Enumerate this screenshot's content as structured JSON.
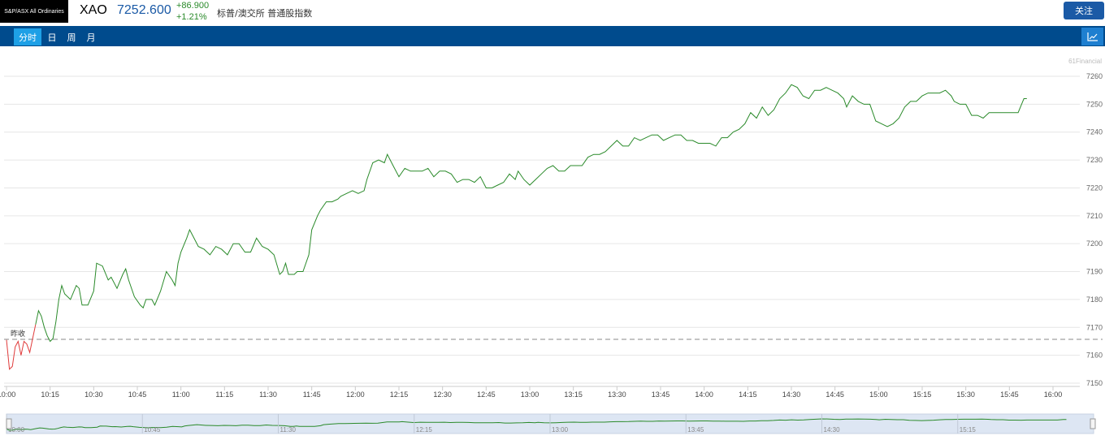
{
  "header": {
    "logo_text": "S&P/ASX All Ordinaries",
    "symbol": "XAO",
    "price": "7252.600",
    "change": "+86.900",
    "change_pct": "+1.21%",
    "exchange": "标普/澳交所 普通股指数",
    "follow_label": "关注"
  },
  "tabs": [
    {
      "label": "分时",
      "active": true
    },
    {
      "label": "日",
      "active": false
    },
    {
      "label": "周",
      "active": false
    },
    {
      "label": "月",
      "active": false
    }
  ],
  "chart_icon": "line-chart-icon",
  "colors": {
    "brand": "#004b8d",
    "tab_active": "#1ea0e6",
    "up": "#2a8a2a",
    "down": "#e03b3b",
    "price": "#1b5aa6"
  },
  "watermark": "61Financial",
  "prev_close_label": "昨收",
  "chart_data": {
    "type": "line",
    "prev_close": 7165.7,
    "ylim": [
      7150,
      7260
    ],
    "y_ticks": [
      7150,
      7160,
      7170,
      7180,
      7190,
      7200,
      7210,
      7220,
      7230,
      7240,
      7250,
      7260
    ],
    "x_ticks": [
      "10:00",
      "10:15",
      "10:30",
      "10:45",
      "11:00",
      "11:15",
      "11:30",
      "11:45",
      "12:00",
      "12:15",
      "12:30",
      "12:45",
      "13:00",
      "13:15",
      "13:30",
      "13:45",
      "14:00",
      "14:15",
      "14:30",
      "14:45",
      "15:00",
      "15:15",
      "15:30",
      "15:45",
      "16:00"
    ],
    "xlim_minutes": [
      0,
      370
    ],
    "series": [
      {
        "color": "#2a8a2a",
        "points": [
          [
            0,
            7165.5
          ],
          [
            1,
            7155
          ],
          [
            2,
            7156
          ],
          [
            3,
            7163
          ],
          [
            4,
            7165
          ],
          [
            5,
            7160
          ],
          [
            6,
            7165
          ],
          [
            7,
            7164
          ],
          [
            8,
            7161
          ],
          [
            9,
            7166
          ],
          [
            10,
            7171
          ],
          [
            11,
            7176
          ],
          [
            12,
            7174
          ],
          [
            13,
            7170
          ],
          [
            14,
            7167
          ],
          [
            15,
            7165
          ],
          [
            16,
            7166
          ],
          [
            17,
            7172
          ],
          [
            18,
            7180
          ],
          [
            19,
            7185
          ],
          [
            20,
            7182
          ],
          [
            22,
            7180
          ],
          [
            24,
            7185
          ],
          [
            25,
            7184
          ],
          [
            26,
            7178
          ],
          [
            28,
            7178
          ],
          [
            30,
            7183
          ],
          [
            31,
            7193
          ],
          [
            33,
            7192
          ],
          [
            35,
            7187
          ],
          [
            36,
            7188
          ],
          [
            38,
            7184
          ],
          [
            40,
            7189
          ],
          [
            41,
            7191
          ],
          [
            42,
            7187
          ],
          [
            44,
            7181
          ],
          [
            46,
            7178
          ],
          [
            47,
            7177
          ],
          [
            48,
            7180
          ],
          [
            50,
            7180
          ],
          [
            51,
            7178
          ],
          [
            53,
            7183
          ],
          [
            55,
            7190
          ],
          [
            57,
            7187
          ],
          [
            58,
            7185
          ],
          [
            59,
            7193
          ],
          [
            60,
            7197
          ],
          [
            62,
            7202
          ],
          [
            63,
            7205
          ],
          [
            64,
            7203
          ],
          [
            66,
            7199
          ],
          [
            68,
            7198
          ],
          [
            70,
            7196
          ],
          [
            72,
            7199
          ],
          [
            74,
            7198
          ],
          [
            76,
            7196
          ],
          [
            78,
            7200
          ],
          [
            80,
            7200
          ],
          [
            82,
            7197
          ],
          [
            84,
            7197
          ],
          [
            86,
            7202
          ],
          [
            88,
            7199
          ],
          [
            90,
            7198
          ],
          [
            92,
            7196
          ],
          [
            94,
            7189
          ],
          [
            95,
            7190
          ],
          [
            96,
            7193
          ],
          [
            97,
            7189
          ],
          [
            99,
            7189
          ],
          [
            100,
            7190
          ],
          [
            102,
            7190
          ],
          [
            104,
            7196
          ],
          [
            105,
            7205
          ],
          [
            107,
            7210
          ],
          [
            108,
            7212
          ],
          [
            110,
            7215
          ],
          [
            112,
            7215
          ],
          [
            114,
            7216
          ],
          [
            115,
            7217
          ],
          [
            117,
            7218
          ],
          [
            119,
            7219
          ],
          [
            121,
            7218
          ],
          [
            123,
            7219
          ],
          [
            124,
            7223
          ],
          [
            126,
            7229
          ],
          [
            128,
            7230
          ],
          [
            130,
            7229
          ],
          [
            131,
            7232
          ],
          [
            133,
            7228
          ],
          [
            135,
            7224
          ],
          [
            137,
            7227
          ],
          [
            139,
            7226
          ],
          [
            141,
            7226
          ],
          [
            143,
            7226
          ],
          [
            145,
            7227
          ],
          [
            147,
            7224
          ],
          [
            149,
            7226
          ],
          [
            151,
            7226
          ],
          [
            153,
            7225
          ],
          [
            155,
            7222
          ],
          [
            157,
            7223
          ],
          [
            159,
            7223
          ],
          [
            161,
            7222
          ],
          [
            163,
            7224
          ],
          [
            165,
            7220
          ],
          [
            167,
            7220
          ],
          [
            169,
            7221
          ],
          [
            171,
            7222
          ],
          [
            173,
            7225
          ],
          [
            175,
            7223
          ],
          [
            176,
            7226
          ],
          [
            178,
            7223
          ],
          [
            180,
            7221
          ],
          [
            182,
            7223
          ],
          [
            184,
            7225
          ],
          [
            186,
            7227
          ],
          [
            188,
            7228
          ],
          [
            190,
            7226
          ],
          [
            192,
            7226
          ],
          [
            194,
            7228
          ],
          [
            196,
            7228
          ],
          [
            198,
            7228
          ],
          [
            200,
            7231
          ],
          [
            202,
            7232
          ],
          [
            204,
            7232
          ],
          [
            206,
            7233
          ],
          [
            208,
            7235
          ],
          [
            210,
            7237
          ],
          [
            212,
            7235
          ],
          [
            214,
            7235
          ],
          [
            216,
            7238
          ],
          [
            218,
            7237
          ],
          [
            220,
            7238
          ],
          [
            222,
            7239
          ],
          [
            224,
            7239
          ],
          [
            226,
            7237
          ],
          [
            228,
            7238
          ],
          [
            230,
            7239
          ],
          [
            232,
            7239
          ],
          [
            234,
            7237
          ],
          [
            236,
            7237
          ],
          [
            238,
            7236
          ],
          [
            240,
            7236
          ],
          [
            242,
            7236
          ],
          [
            244,
            7235
          ],
          [
            246,
            7238
          ],
          [
            248,
            7238
          ],
          [
            250,
            7240
          ],
          [
            252,
            7241
          ],
          [
            254,
            7243
          ],
          [
            256,
            7247
          ],
          [
            258,
            7245
          ],
          [
            260,
            7249
          ],
          [
            262,
            7246
          ],
          [
            264,
            7248
          ],
          [
            266,
            7252
          ],
          [
            268,
            7254
          ],
          [
            270,
            7257
          ],
          [
            272,
            7256
          ],
          [
            274,
            7253
          ],
          [
            276,
            7252
          ],
          [
            278,
            7255
          ],
          [
            280,
            7255
          ],
          [
            282,
            7256
          ],
          [
            284,
            7255
          ],
          [
            286,
            7254
          ],
          [
            288,
            7252
          ],
          [
            289,
            7249
          ],
          [
            291,
            7253
          ],
          [
            293,
            7251
          ],
          [
            295,
            7250
          ],
          [
            297,
            7250
          ],
          [
            299,
            7244
          ],
          [
            301,
            7243
          ],
          [
            303,
            7242
          ],
          [
            305,
            7243
          ],
          [
            307,
            7245
          ],
          [
            309,
            7249
          ],
          [
            311,
            7251
          ],
          [
            313,
            7251
          ],
          [
            315,
            7253
          ],
          [
            317,
            7254
          ],
          [
            319,
            7254
          ],
          [
            321,
            7254
          ],
          [
            323,
            7255
          ],
          [
            325,
            7253
          ],
          [
            326,
            7251
          ],
          [
            328,
            7250
          ],
          [
            330,
            7250
          ],
          [
            332,
            7246
          ],
          [
            334,
            7246
          ],
          [
            336,
            7245
          ],
          [
            338,
            7247
          ],
          [
            340,
            7247
          ],
          [
            342,
            7247
          ],
          [
            344,
            7247
          ],
          [
            346,
            7247
          ],
          [
            348,
            7247
          ],
          [
            350,
            7252
          ],
          [
            351,
            7252
          ]
        ]
      }
    ],
    "navigator_ticks": [
      "10:00",
      "10:45",
      "11:30",
      "12:15",
      "13:00",
      "13:45",
      "14:30",
      "15:15"
    ]
  }
}
